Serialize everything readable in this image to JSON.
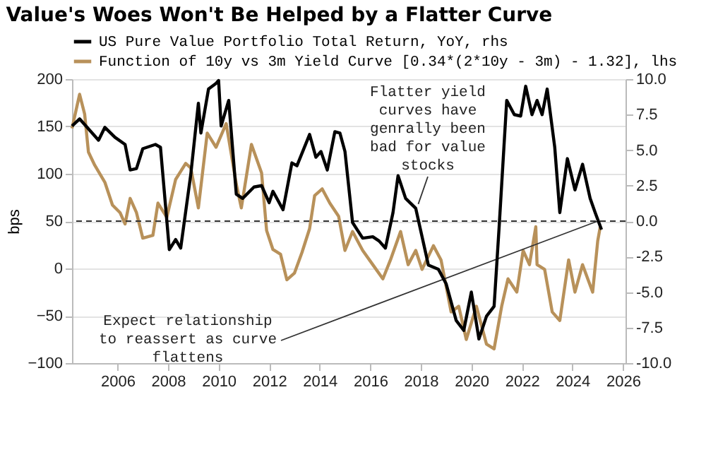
{
  "chart_data": {
    "type": "line",
    "title": "Value's Woes Won't Be Helped by a Flatter Curve",
    "ylabel": "bps",
    "series": [
      {
        "name": "US Pure Value Portfolio Total Return, YoY, rhs",
        "color": "#000000",
        "axis": "y2",
        "x": [
          2004.2,
          2004.5,
          2005.25,
          2005.5,
          2005.9,
          2006.3,
          2006.5,
          2006.75,
          2007.0,
          2007.5,
          2007.7,
          2008.05,
          2008.3,
          2008.5,
          2008.9,
          2009.2,
          2009.3,
          2009.6,
          2009.9,
          2010.0,
          2010.1,
          2010.4,
          2010.7,
          2010.95,
          2011.4,
          2011.7,
          2012.0,
          2012.15,
          2012.55,
          2012.9,
          2013.1,
          2013.6,
          2013.85,
          2014.05,
          2014.3,
          2014.6,
          2014.8,
          2015.0,
          2015.3,
          2015.7,
          2016.1,
          2016.35,
          2016.6,
          2016.9,
          2017.1,
          2017.4,
          2017.8,
          2018.0,
          2018.3,
          2018.7,
          2019.0,
          2019.4,
          2019.7,
          2020.0,
          2020.3,
          2020.6,
          2020.9,
          2021.1,
          2021.4,
          2021.7,
          2021.95,
          2022.15,
          2022.4,
          2022.6,
          2022.8,
          2023.0,
          2023.3,
          2023.5,
          2023.8,
          2024.1,
          2024.4,
          2024.7,
          2024.9,
          2025.15
        ],
        "values": [
          6.7,
          7.2,
          5.7,
          6.6,
          5.9,
          5.4,
          3.6,
          3.7,
          5.1,
          5.4,
          5.2,
          -2.0,
          -1.3,
          -1.9,
          3.3,
          8.3,
          6.2,
          9.3,
          9.7,
          9.9,
          6.7,
          8.5,
          1.9,
          1.6,
          2.4,
          2.5,
          1.3,
          2.1,
          0.8,
          4.1,
          3.9,
          6.1,
          4.5,
          4.9,
          3.6,
          6.3,
          6.2,
          4.9,
          -0.1,
          -1.2,
          -1.1,
          -1.4,
          -1.9,
          0.6,
          3.2,
          1.6,
          0.9,
          -0.7,
          -3.1,
          -3.4,
          -4.4,
          -7.0,
          -7.7,
          -5.0,
          -8.3,
          -6.7,
          -6.0,
          -0.4,
          8.5,
          7.5,
          7.4,
          9.5,
          7.5,
          8.5,
          7.5,
          9.3,
          5.2,
          0.6,
          4.4,
          2.2,
          4.0,
          1.6,
          0.6,
          -0.6
        ]
      },
      {
        "name": "Function of 10y vs 3m Yield Curve [0.34*(2*10y - 3m) - 1.32], lhs",
        "color": "#b8915a",
        "x": [
          2004.2,
          2004.5,
          2004.7,
          2004.85,
          2005.1,
          2005.5,
          2005.8,
          2006.1,
          2006.3,
          2006.5,
          2006.75,
          2007.0,
          2007.4,
          2007.6,
          2007.95,
          2008.3,
          2008.7,
          2008.9,
          2009.2,
          2009.55,
          2009.9,
          2010.3,
          2010.7,
          2010.9,
          2011.3,
          2011.7,
          2011.9,
          2012.15,
          2012.45,
          2012.7,
          2013.0,
          2013.3,
          2013.6,
          2013.8,
          2014.1,
          2014.4,
          2014.75,
          2015.0,
          2015.3,
          2015.7,
          2016.1,
          2016.5,
          2016.8,
          2017.2,
          2017.5,
          2017.8,
          2018.05,
          2018.5,
          2018.8,
          2019.2,
          2019.5,
          2019.8,
          2020.2,
          2020.6,
          2020.9,
          2021.2,
          2021.45,
          2021.8,
          2022.05,
          2022.3,
          2022.55,
          2022.6,
          2022.9,
          2023.2,
          2023.5,
          2023.85,
          2024.1,
          2024.4,
          2024.8,
          2025.0,
          2025.1
        ],
        "values": [
          148,
          184,
          163,
          123,
          109,
          91,
          67,
          59,
          47,
          74,
          59,
          32,
          35,
          69,
          54,
          94,
          111,
          106,
          64,
          143,
          128,
          153,
          89,
          64,
          131,
          101,
          40,
          20,
          15,
          -12,
          -5,
          17,
          42,
          77,
          84,
          69,
          55,
          19,
          39,
          19,
          4,
          -11,
          9,
          39,
          4,
          19,
          -1,
          24,
          9,
          -46,
          -40,
          -75,
          -40,
          -80,
          -85,
          -40,
          -11,
          -25,
          19,
          4,
          44,
          4,
          -1,
          -46,
          -55,
          9,
          -25,
          4,
          -25,
          29,
          44
        ]
      }
    ],
    "xlim": [
      2004.2,
      2026.1
    ],
    "xticks": [
      2006,
      2008,
      2010,
      2012,
      2014,
      2016,
      2018,
      2020,
      2022,
      2024,
      2026
    ],
    "ylim": [
      -100,
      200
    ],
    "yticks": [
      -100,
      -50,
      0,
      50,
      100,
      150,
      200
    ],
    "y2lim": [
      -10,
      10
    ],
    "y2ticks": [
      {
        "value": -10,
        "label": "-10.0"
      },
      {
        "value": -7.5,
        "label": "-7.5"
      },
      {
        "value": -5,
        "label": "-5.0"
      },
      {
        "value": -2.5,
        "label": "-2.5"
      },
      {
        "value": 0,
        "label": "0.0"
      },
      {
        "value": 2.5,
        "label": "2.5"
      },
      {
        "value": 5,
        "label": "5.0"
      },
      {
        "value": 7.5,
        "label": "7.5"
      },
      {
        "value": 10,
        "label": "10.0"
      }
    ],
    "ref_lines": [
      {
        "axis": "y",
        "value": 50,
        "color": "#333333",
        "line_style": "dashed"
      }
    ],
    "annotations": [
      {
        "text": "Flatter yield curves have genrally been bad for value stocks",
        "x": 2017.9,
        "y": 68
      },
      {
        "text": "Expect relationship to reassert as curve flattens",
        "x": 2025.0,
        "y": 50
      }
    ],
    "grid": "y",
    "legend": "top left",
    "line_style": "solid",
    "marker": "none"
  }
}
